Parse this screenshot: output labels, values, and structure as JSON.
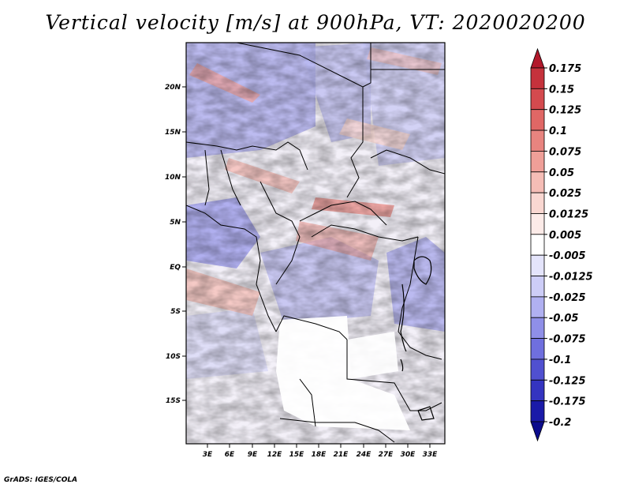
{
  "title": "Vertical velocity [m/s] at 900hPa, VT: 2020020200",
  "map": {
    "lat_labels": [
      "20N",
      "15N",
      "10N",
      "5N",
      "EQ",
      "5S",
      "10S",
      "15S"
    ],
    "lon_labels": [
      "3E",
      "6E",
      "9E",
      "12E",
      "15E",
      "18E",
      "21E",
      "24E",
      "27E",
      "30E",
      "33E"
    ]
  },
  "colorbar": {
    "levels": [
      "0.175",
      "0.15",
      "0.125",
      "0.1",
      "0.075",
      "0.05",
      "0.025",
      "0.0125",
      "0.005",
      "-0.005",
      "-0.0125",
      "-0.025",
      "-0.05",
      "-0.075",
      "-0.1",
      "-0.125",
      "-0.175",
      "-0.2"
    ],
    "colors": [
      "#b2182b",
      "#c5323c",
      "#d44a4e",
      "#e06765",
      "#e8847f",
      "#ef9f98",
      "#f5bdb6",
      "#f9d7d1",
      "#fcebe8",
      "#ffffff",
      "#e4e4fb",
      "#cdcdf7",
      "#b0b0f1",
      "#8f8fe8",
      "#6f6fde",
      "#5050d0",
      "#3434c0",
      "#1a1aa8",
      "#0c0c8c"
    ]
  },
  "footer": "GrADS: IGES/COLA"
}
